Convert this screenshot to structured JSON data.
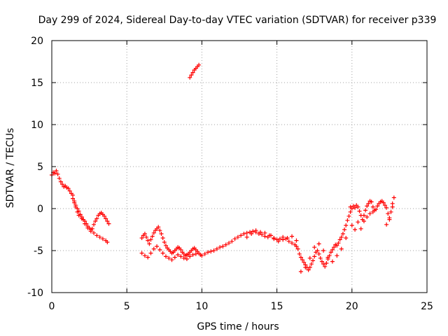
{
  "chart_data": {
    "type": "scatter",
    "title": "Day 299 of 2024, Sidereal Day-to-day VTEC variation (SDTVAR) for receiver p339",
    "xlabel": "GPS time / hours",
    "ylabel": "SDTVAR / TECUs",
    "xlim": [
      0,
      25
    ],
    "ylim": [
      -10,
      20
    ],
    "xticks": [
      0,
      5,
      10,
      15,
      20,
      25
    ],
    "yticks": [
      -10,
      -5,
      0,
      5,
      10,
      15,
      20
    ],
    "grid": true,
    "marker": "+",
    "marker_color": "#ff0000",
    "series": [
      {
        "name": "SDTVAR",
        "x": [
          0.0,
          0.1,
          0.2,
          0.3,
          0.4,
          0.5,
          0.6,
          0.7,
          0.8,
          0.9,
          1.0,
          1.1,
          1.2,
          1.3,
          1.4,
          1.5,
          1.6,
          1.7,
          1.8,
          1.9,
          2.0,
          2.1,
          2.2,
          2.3,
          2.4,
          2.5,
          2.6,
          2.7,
          2.8,
          2.9,
          3.0,
          3.1,
          3.2,
          3.3,
          3.4,
          3.5,
          3.6,
          3.7,
          3.8,
          1.4,
          1.5,
          1.6,
          1.7,
          1.8,
          2.0,
          2.2,
          2.4,
          2.6,
          2.8,
          3.0,
          3.2,
          3.4,
          3.6,
          3.7,
          9.2,
          9.3,
          9.4,
          9.5,
          9.6,
          9.7,
          9.8,
          6.0,
          6.1,
          6.2,
          6.3,
          6.4,
          6.5,
          6.6,
          6.7,
          6.8,
          6.9,
          7.0,
          7.1,
          7.2,
          7.3,
          7.4,
          7.5,
          7.6,
          7.7,
          7.8,
          7.9,
          8.0,
          8.1,
          8.2,
          8.3,
          8.4,
          8.5,
          8.6,
          8.7,
          8.8,
          8.9,
          9.0,
          9.1,
          9.2,
          9.3,
          9.4,
          9.5,
          9.6,
          9.7,
          9.8,
          6.0,
          6.2,
          6.4,
          6.6,
          6.8,
          7.0,
          7.2,
          7.4,
          7.6,
          7.8,
          8.0,
          8.2,
          8.4,
          8.6,
          8.8,
          9.0,
          9.2,
          9.4,
          9.6,
          9.9,
          10.0,
          10.2,
          10.4,
          10.6,
          10.8,
          11.0,
          11.2,
          11.4,
          11.6,
          11.8,
          12.0,
          12.2,
          12.4,
          12.6,
          12.8,
          13.0,
          13.2,
          13.4,
          13.6,
          13.8,
          14.0,
          14.2,
          14.4,
          14.6,
          14.8,
          15.0,
          15.2,
          15.4,
          15.6,
          15.8,
          16.0,
          16.2,
          13.0,
          13.3,
          13.6,
          13.9,
          14.2,
          14.5,
          14.8,
          15.1,
          15.4,
          15.7,
          16.0,
          16.3,
          16.3,
          16.4,
          16.5,
          16.6,
          16.7,
          16.8,
          16.9,
          17.0,
          17.1,
          17.2,
          17.3,
          17.4,
          17.5,
          17.6,
          17.7,
          17.8,
          17.9,
          18.0,
          18.1,
          18.2,
          18.3,
          18.4,
          18.5,
          18.6,
          18.7,
          18.8,
          18.9,
          19.0,
          19.1,
          19.2,
          19.3,
          19.4,
          19.5,
          19.6,
          19.7,
          19.8,
          19.9,
          16.6,
          16.9,
          17.2,
          17.5,
          17.8,
          18.1,
          18.4,
          18.7,
          19.0,
          19.3,
          19.6,
          19.9,
          20.0,
          20.1,
          20.2,
          20.3,
          20.4,
          20.5,
          20.6,
          20.7,
          20.8,
          20.9,
          21.0,
          21.1,
          21.2,
          21.3,
          21.4,
          21.5,
          21.6,
          21.7,
          21.8,
          21.9,
          22.0,
          22.1,
          22.2,
          22.3,
          22.4,
          22.5,
          22.6,
          22.7,
          22.8,
          20.0,
          20.2,
          20.4,
          20.6,
          20.8,
          21.0,
          21.2,
          21.4,
          22.3,
          22.5,
          22.7
        ],
        "y": [
          4.0,
          4.3,
          4.2,
          4.5,
          4.1,
          3.6,
          3.2,
          2.9,
          2.6,
          2.7,
          2.5,
          2.4,
          2.1,
          1.8,
          1.2,
          0.7,
          0.4,
          0.0,
          -0.3,
          -0.7,
          -1.0,
          -1.3,
          -1.5,
          -1.8,
          -2.1,
          -2.3,
          -2.5,
          -2.4,
          -1.9,
          -1.5,
          -1.2,
          -0.8,
          -0.6,
          -0.5,
          -0.7,
          -0.9,
          -1.2,
          -1.5,
          -1.8,
          1.6,
          0.9,
          0.2,
          -0.4,
          -0.8,
          -1.2,
          -1.8,
          -2.3,
          -2.7,
          -2.9,
          -3.2,
          -3.4,
          -3.6,
          -3.8,
          -4.0,
          15.6,
          15.9,
          16.2,
          16.5,
          16.7,
          16.9,
          17.1,
          -3.5,
          -3.2,
          -3.0,
          -3.4,
          -3.8,
          -4.2,
          -3.7,
          -3.3,
          -2.9,
          -2.6,
          -2.4,
          -2.2,
          -2.6,
          -3.0,
          -3.5,
          -4.0,
          -4.4,
          -4.7,
          -4.9,
          -5.1,
          -5.3,
          -5.2,
          -5.0,
          -4.8,
          -4.6,
          -4.7,
          -4.9,
          -5.2,
          -5.4,
          -5.6,
          -5.5,
          -5.4,
          -5.2,
          -5.0,
          -4.8,
          -4.7,
          -4.9,
          -5.1,
          -5.3,
          -5.3,
          -5.6,
          -5.8,
          -5.3,
          -4.8,
          -4.5,
          -4.9,
          -5.3,
          -5.7,
          -5.9,
          -6.1,
          -5.8,
          -5.5,
          -5.7,
          -5.9,
          -6.0,
          -5.7,
          -5.5,
          -5.4,
          -5.5,
          -5.6,
          -5.4,
          -5.2,
          -5.1,
          -5.0,
          -4.8,
          -4.6,
          -4.5,
          -4.3,
          -4.1,
          -3.9,
          -3.6,
          -3.4,
          -3.2,
          -3.0,
          -2.9,
          -2.8,
          -2.7,
          -2.8,
          -3.0,
          -3.1,
          -3.3,
          -3.4,
          -3.2,
          -3.5,
          -3.7,
          -3.6,
          -3.4,
          -3.6,
          -3.9,
          -4.1,
          -4.3,
          -3.4,
          -3.0,
          -2.6,
          -2.8,
          -2.9,
          -3.2,
          -3.6,
          -3.9,
          -3.7,
          -3.5,
          -3.3,
          -3.8,
          -4.5,
          -4.8,
          -5.4,
          -5.8,
          -6.1,
          -6.4,
          -6.7,
          -7.0,
          -7.3,
          -7.0,
          -6.6,
          -6.2,
          -5.7,
          -5.2,
          -5.0,
          -5.4,
          -5.9,
          -6.3,
          -6.6,
          -6.9,
          -6.5,
          -6.0,
          -5.6,
          -5.2,
          -4.9,
          -4.6,
          -4.3,
          -4.4,
          -4.1,
          -3.7,
          -3.4,
          -3.0,
          -2.5,
          -2.0,
          -1.4,
          -0.9,
          -0.4,
          -7.5,
          -7.0,
          -5.9,
          -4.6,
          -4.2,
          -5.0,
          -5.8,
          -6.3,
          -5.6,
          -4.8,
          -3.5,
          0.2,
          0.0,
          0.3,
          0.1,
          0.4,
          0.2,
          -0.3,
          -0.8,
          -1.3,
          -0.8,
          -0.2,
          0.3,
          0.6,
          0.9,
          0.8,
          0.2,
          -0.2,
          -0.1,
          0.3,
          0.6,
          0.8,
          0.9,
          0.7,
          0.4,
          0.1,
          -0.6,
          -1.3,
          -0.4,
          0.6,
          1.3,
          -2.0,
          -2.5,
          -1.6,
          -2.4,
          -1.5,
          -1.0,
          -0.6,
          -0.4,
          -1.9,
          -1.1,
          0.2
        ]
      }
    ]
  }
}
